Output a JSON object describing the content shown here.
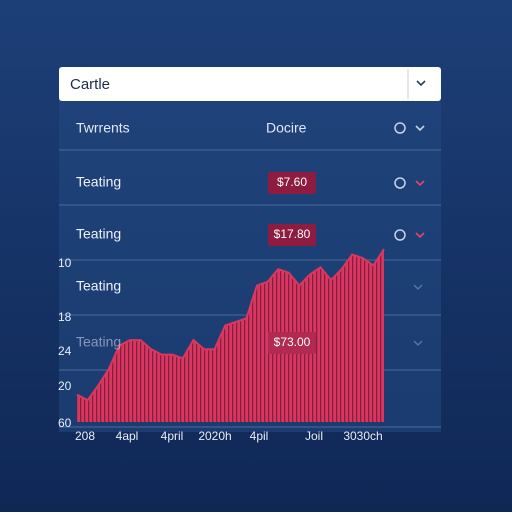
{
  "dropdown": {
    "label": "Cartle"
  },
  "header": {
    "col1": "Twrrents",
    "col2": "Docire"
  },
  "rows": [
    {
      "label": "Teating",
      "price": "$7.60"
    },
    {
      "label": "Teating",
      "price": "$17.80"
    },
    {
      "label": "Teating"
    },
    {
      "label": "Teating",
      "price": "$73.00"
    }
  ],
  "chart": {
    "type": "area",
    "color": "#d8385f",
    "y_labels": [
      "10",
      "18",
      "24",
      "20",
      "60"
    ],
    "x_labels": [
      "208",
      "4apl",
      "4pril",
      "2020h",
      "4pil",
      "Joil",
      "3030ch"
    ],
    "ylim": [
      0,
      100
    ],
    "values": [
      15,
      12,
      20,
      29,
      42,
      45,
      45,
      40,
      37,
      37,
      35,
      45,
      40,
      40,
      53,
      55,
      57,
      75,
      77,
      84,
      82,
      75,
      81,
      85,
      78,
      84,
      92,
      90,
      86,
      95
    ]
  }
}
